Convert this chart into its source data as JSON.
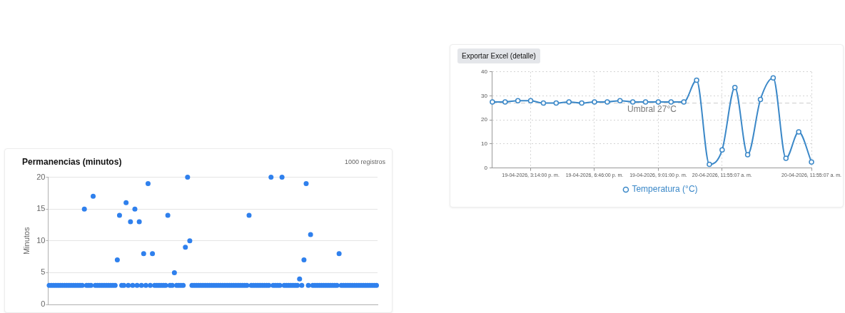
{
  "chart_data": [
    {
      "type": "scatter",
      "title": "Permanencias (minutos)",
      "annotations": [
        "1000 registros"
      ],
      "ylabel": "Minutos",
      "categories": [
        null,
        null,
        null,
        null,
        null,
        null,
        null,
        null,
        null,
        null,
        null,
        null,
        null,
        null,
        null,
        null,
        null,
        null,
        null,
        null,
        null,
        null,
        null,
        null,
        null,
        null,
        null,
        null,
        null,
        null,
        null,
        null,
        null,
        null,
        null,
        null,
        null,
        null,
        null,
        null,
        null,
        null,
        null,
        null,
        null,
        null,
        null,
        null,
        null,
        null,
        null,
        null,
        null,
        null,
        null,
        null,
        null,
        null,
        null,
        null,
        null,
        null,
        null,
        null,
        null,
        null,
        null,
        null,
        null,
        null,
        null,
        null,
        null,
        null,
        null,
        null,
        null,
        null,
        null,
        null,
        null,
        null,
        null,
        null,
        null,
        null,
        null,
        null,
        null,
        null,
        null,
        null,
        null,
        null,
        null,
        null,
        null,
        null,
        null,
        null,
        null,
        null,
        null,
        null,
        null,
        null,
        null,
        null,
        null,
        null,
        null,
        null,
        null,
        null,
        null,
        null,
        null,
        null,
        null,
        null,
        null,
        null,
        null,
        null,
        null,
        null,
        null,
        null,
        null,
        null,
        null,
        null,
        null,
        null,
        null,
        null,
        null,
        null,
        null,
        null,
        null,
        null,
        null,
        null,
        null,
        null,
        null,
        null,
        null,
        null
      ],
      "series": [
        {
          "color": "#2f80ed",
          "values": [
            3,
            3,
            3,
            3,
            3,
            3,
            3,
            3,
            3,
            3,
            3,
            3,
            3,
            3,
            3,
            3,
            15,
            3,
            3,
            3,
            17,
            3,
            3,
            3,
            3,
            3,
            3,
            3,
            3,
            3,
            3,
            7,
            14,
            3,
            3,
            16,
            3,
            13,
            3,
            15,
            3,
            13,
            3,
            8,
            3,
            19,
            3,
            8,
            3,
            3,
            3,
            3,
            3,
            3,
            14,
            3,
            3,
            5,
            3,
            3,
            3,
            3,
            9,
            20,
            10,
            3,
            3,
            3,
            3,
            3,
            3,
            3,
            3,
            3,
            3,
            3,
            3,
            3,
            3,
            3,
            3,
            3,
            3,
            3,
            3,
            3,
            3,
            3,
            3,
            3,
            3,
            14,
            3,
            3,
            3,
            3,
            3,
            3,
            3,
            3,
            3,
            20,
            3,
            3,
            3,
            3,
            20,
            3,
            3,
            3,
            3,
            3,
            3,
            3,
            4,
            3,
            7,
            19,
            3,
            11,
            3,
            3,
            3,
            3,
            3,
            3,
            3,
            3,
            3,
            3,
            3,
            3,
            8,
            3,
            3,
            3,
            3,
            3,
            3,
            3,
            3,
            3,
            3,
            3,
            3,
            3,
            3,
            3,
            3,
            3
          ]
        }
      ],
      "ylim": [
        0,
        20
      ],
      "yticks": [
        0,
        5,
        10,
        15,
        20
      ],
      "grid": "y",
      "legend": false,
      "tick_labels": "y",
      "marker": "circle"
    },
    {
      "type": "line",
      "annotations": [
        "Exportar Excel (detalle)"
      ],
      "categories": [
        null,
        null,
        null,
        "19-04-2026, 3:14:00 p. m.",
        null,
        null,
        null,
        null,
        "19-04-2026, 6:46:00 p. m.",
        null,
        null,
        null,
        null,
        "19-04-2026, 9:01:00 p. m.",
        null,
        null,
        null,
        null,
        "20-04-2026, 11:55:07 a. m.",
        null,
        null,
        null,
        null,
        null,
        null,
        "20-04-2026, 11:55:07 a. m."
      ],
      "series": [
        {
          "name": "Temperatura (°C)",
          "color": "#3b88c8",
          "values": [
            27.5,
            27.5,
            28,
            28,
            27,
            27,
            27.5,
            27,
            27.5,
            27.5,
            28,
            27.5,
            27.5,
            27.5,
            27.5,
            27.5,
            36.5,
            1.5,
            7.5,
            33.5,
            5.5,
            28.5,
            37.5,
            4,
            15,
            2.5
          ]
        }
      ],
      "ylim": [
        0,
        40
      ],
      "yticks": [
        0,
        10,
        20,
        30,
        40
      ],
      "ref_lines": [
        {
          "axis": "y",
          "value": 27,
          "label": "Umbral 27°C",
          "color": "#cccccc",
          "line_style": "dashed"
        }
      ],
      "grid": true,
      "legend": "bottom",
      "marker": "circle",
      "line_style": "solid"
    }
  ]
}
